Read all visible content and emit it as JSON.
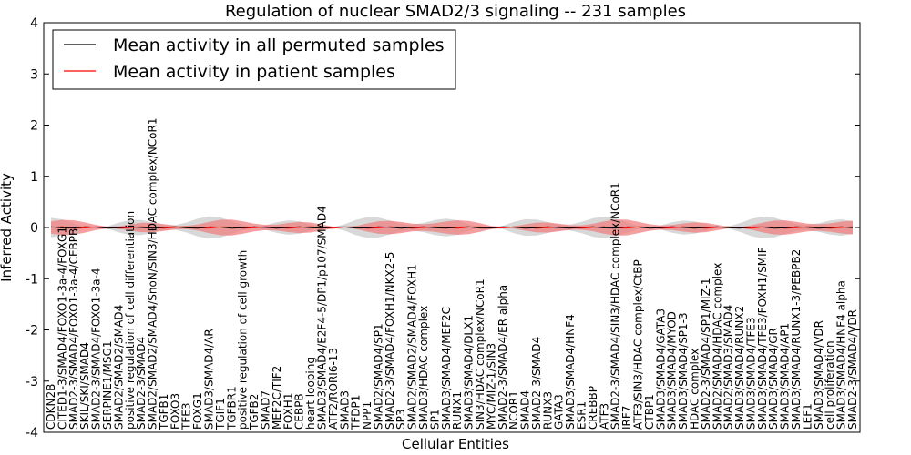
{
  "chart_data": {
    "type": "line",
    "title": "Regulation of nuclear SMAD2/3 signaling -- 231 samples",
    "xlabel": "Cellular Entities",
    "ylabel": "Inferred Activity",
    "ylim": [
      -4,
      4
    ],
    "yticks": [
      "-4",
      "-3",
      "-2",
      "-1",
      "0",
      "1",
      "2",
      "3",
      "4"
    ],
    "grid": false,
    "legend_position": "top-left",
    "colors": {
      "permuted": "#000000",
      "patient": "#ff0000",
      "patient_band": "#f08080",
      "permuted_band": "#c8c8c8"
    },
    "categories": [
      "CDKN2B",
      "CITED1-3/SMAD4/FOXO1-3a-4/FOXG1",
      "SMAD2-3/SMAD4/FOXO1-3a-4/CEBPB",
      "SKIL/SKI/SMAD4",
      "SMAD2-3/SMAD4/FOXO1-3a-4",
      "SERPINE1/MSG1",
      "SMAD2/SMAD2/SMAD4",
      "positive regulation of cell differentiation",
      "SMAD2-3/SMAD4",
      "SMAD2/SMAD2/SMAD4/SnoN/SIN3/HDAC complex/NCoR1",
      "TGFB1",
      "FOXO3",
      "TFE3",
      "FOXG1",
      "SMAD3/SMAD4/AR",
      "TGIF1",
      "TGFBR1",
      "positive regulation of cell growth",
      "TGFB2",
      "SMAD7",
      "MEF2C/TIF2",
      "FOXH1",
      "CEBPB",
      "heart looping",
      "SMAD3/SMAD4/E2F4-5/DP1/p107/SMAD4",
      "ATF2/RORI6-13",
      "SMAD3",
      "TFDP1",
      "NPP1",
      "SMAD2/SMAD4/SP1",
      "SMAD2-3/SMAD4/FOXH1/NKX2-5",
      "SP3",
      "SMAD2/SMAD2/SMAD4/FOXH1",
      "SMAD3/HDAC complex",
      "SP1",
      "SMAD3/SMAD4/MEF2C",
      "RUNX1",
      "SMAD3/SMAD4/DLX1",
      "SIN3/HDAC complex/NCoR1",
      "MYC/MIZ-1/SIN3",
      "SMAD2-3/SMAD4/ER alpha",
      "NCOR1",
      "SMAD4",
      "SMAD2-3/SMAD4",
      "RUNX3",
      "GATA3",
      "SMAD3/SMAD4/HNF4",
      "ESR1",
      "CREBBP",
      "ATF3",
      "SMAD2-3/SMAD4/SIN3/HDAC complex/NCoR1",
      "IRF7",
      "ATF3/SIN3/HDAC complex/CtBP",
      "CTBP1",
      "SMAD3/SMAD4/GATA3",
      "SMAD3/SMAD4/MYOD",
      "SMAD3/SMAD4/SP1-3",
      "HDAC complex",
      "SMAD2-3/SMAD4/SP1/MIZ-1",
      "SMAD2/SMAD4/HDAC complex",
      "SMAD2/SMAD3/SMAD4",
      "SMAD3/SMAD4/RUNX2",
      "SMAD3/SMAD4/TFE3",
      "SMAD3/SMAD4/TFE3/FOXH1/SMIF",
      "SMAD3/SMAD4/GR",
      "SMAD3/SMAD4/AP1",
      "SMAD3/SMAD4/RUNX1-3/PEBPB2",
      "LEF1",
      "SMAD3/SMAD4/VDR",
      "cell proliferation",
      "SMAD3/SMAD4/HNF4 alpha",
      "SMAD2-3/SMAD4/VDR"
    ],
    "series": [
      {
        "name": "Mean activity in all permuted samples",
        "mean": 0.0,
        "band_halfwidth": 0.1
      },
      {
        "name": "Mean activity in patient samples",
        "mean": 0.0,
        "band_halfwidth": 0.08
      }
    ],
    "legend": [
      "Mean activity in all permuted samples",
      "Mean activity in patient samples"
    ]
  }
}
